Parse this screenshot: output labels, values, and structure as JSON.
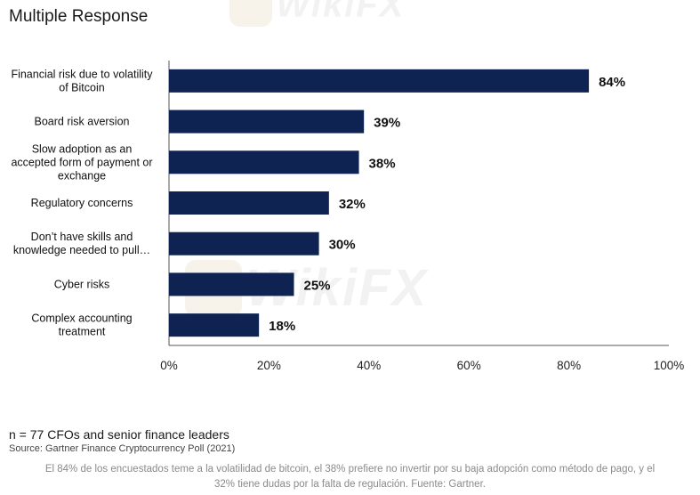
{
  "page": {
    "title": "Multiple Response",
    "sample_note": "n = 77 CFOs and senior finance leaders",
    "source": "Source: Gartner Finance Cryptocurrency Poll (2021)",
    "caption": "El 84% de los encuestados teme a la volatilidad de bitcoin, el 38% prefiere no invertir por su baja adopción como método de pago, y el 32% tiene dudas por la falta de regulación. Fuente: Gartner.",
    "watermark": "WikiFX"
  },
  "chart_data": {
    "type": "bar",
    "orientation": "horizontal",
    "title": "Multiple Response",
    "categories": [
      [
        "Financial risk due to volatility",
        "of Bitcoin"
      ],
      [
        "Board risk aversion"
      ],
      [
        "Slow adoption as an",
        "accepted form of payment or",
        "exchange"
      ],
      [
        "Regulatory concerns"
      ],
      [
        "Don’t have skills and",
        "knowledge needed to pull…"
      ],
      [
        "Cyber risks"
      ],
      [
        "Complex accounting",
        "treatment"
      ]
    ],
    "values": [
      84,
      39,
      38,
      32,
      30,
      25,
      18
    ],
    "data_labels": [
      "84%",
      "39%",
      "38%",
      "32%",
      "30%",
      "25%",
      "18%"
    ],
    "xlim": [
      0,
      100
    ],
    "xticks": [
      0,
      20,
      40,
      60,
      80,
      100
    ],
    "xtick_labels": [
      "0%",
      "20%",
      "40%",
      "60%",
      "80%",
      "100%"
    ],
    "grid": false,
    "bar_color": "#0e2352",
    "text_color": "#111111"
  }
}
